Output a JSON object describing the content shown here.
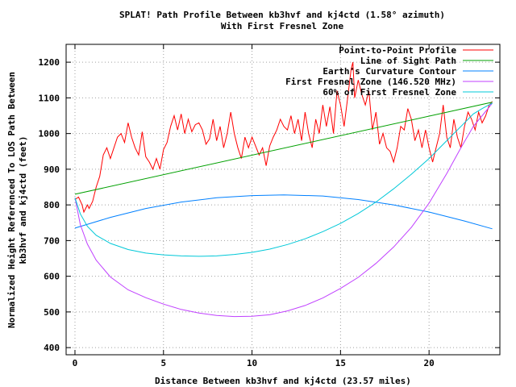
{
  "chart_data": {
    "type": "line",
    "title": "SPLAT! Path Profile Between kb3hvf and kj4ctd (1.58° azimuth)",
    "subtitle": "With First Fresnel Zone",
    "xlabel": "Distance Between kb3hvf and kj4ctd (23.57 miles)",
    "ylabel_line1": "Normalized Height Referenced To LOS Path Between",
    "ylabel_line2": "kb3hvf and kj4ctd (feet)",
    "xlim": [
      -0.5,
      24
    ],
    "ylim": [
      380,
      1250
    ],
    "x_ticks": [
      0,
      5,
      10,
      15,
      20
    ],
    "y_ticks": [
      400,
      500,
      600,
      700,
      800,
      900,
      1000,
      1100,
      1200
    ],
    "grid": true,
    "legend_position": "top-right",
    "series": [
      {
        "name": "Point-to-Point Profile",
        "color": "#ff0000",
        "x": [
          0,
          0.2,
          0.4,
          0.5,
          0.7,
          0.8,
          1.0,
          1.2,
          1.4,
          1.6,
          1.8,
          2.0,
          2.2,
          2.4,
          2.6,
          2.8,
          3.0,
          3.2,
          3.4,
          3.6,
          3.8,
          4.0,
          4.2,
          4.4,
          4.6,
          4.8,
          5.0,
          5.2,
          5.4,
          5.6,
          5.8,
          6.0,
          6.2,
          6.4,
          6.6,
          6.8,
          7.0,
          7.2,
          7.4,
          7.6,
          7.8,
          8.0,
          8.2,
          8.4,
          8.6,
          8.8,
          9.0,
          9.2,
          9.4,
          9.6,
          9.8,
          10.0,
          10.2,
          10.4,
          10.6,
          10.8,
          11.0,
          11.2,
          11.4,
          11.6,
          11.8,
          12.0,
          12.2,
          12.4,
          12.6,
          12.8,
          13.0,
          13.2,
          13.4,
          13.6,
          13.8,
          14.0,
          14.2,
          14.4,
          14.6,
          14.8,
          15.0,
          15.2,
          15.4,
          15.6,
          15.7,
          15.8,
          16.0,
          16.2,
          16.4,
          16.6,
          16.8,
          17.0,
          17.2,
          17.4,
          17.6,
          17.8,
          18.0,
          18.2,
          18.4,
          18.6,
          18.8,
          19.0,
          19.2,
          19.4,
          19.6,
          19.8,
          20.0,
          20.2,
          20.4,
          20.6,
          20.8,
          21.0,
          21.2,
          21.4,
          21.6,
          21.8,
          22.0,
          22.2,
          22.4,
          22.6,
          22.8,
          23.0,
          23.2,
          23.4,
          23.57
        ],
        "y": [
          815,
          822,
          800,
          780,
          800,
          790,
          810,
          850,
          880,
          940,
          960,
          930,
          960,
          990,
          1000,
          975,
          1030,
          990,
          960,
          940,
          1005,
          935,
          920,
          900,
          930,
          900,
          955,
          975,
          1020,
          1050,
          1010,
          1055,
          1000,
          1040,
          1005,
          1025,
          1030,
          1010,
          970,
          985,
          1040,
          980,
          1020,
          960,
          1000,
          1060,
          1000,
          960,
          930,
          990,
          960,
          990,
          965,
          940,
          960,
          910,
          965,
          990,
          1010,
          1040,
          1020,
          1010,
          1050,
          1000,
          1040,
          980,
          1060,
          1000,
          960,
          1040,
          1000,
          1080,
          1020,
          1075,
          1000,
          1120,
          1080,
          1020,
          1100,
          1180,
          1200,
          1100,
          1150,
          1110,
          1080,
          1120,
          1010,
          1060,
          970,
          1000,
          960,
          950,
          920,
          960,
          1020,
          1010,
          1070,
          1040,
          980,
          1010,
          960,
          1010,
          960,
          920,
          960,
          1000,
          1080,
          990,
          960,
          1040,
          990,
          960,
          1020,
          1060,
          1040,
          1010,
          1060,
          1030,
          1050,
          1080,
          1090
        ]
      },
      {
        "name": "Line of Sight Path",
        "color": "#00a000",
        "x": [
          0,
          23.57
        ],
        "y": [
          830,
          1088
        ]
      },
      {
        "name": "Earth's Curvature Contour",
        "color": "#0080ff",
        "x": [
          0,
          2,
          4,
          6,
          8,
          10,
          11.8,
          14,
          16,
          18,
          20,
          22,
          23.57
        ],
        "y": [
          735,
          765,
          790,
          808,
          820,
          826,
          828,
          825,
          815,
          800,
          780,
          755,
          733
        ]
      },
      {
        "name": "First Fresnel Zone (146.520 MHz)",
        "color": "#c040ff",
        "x": [
          0,
          0.3,
          0.7,
          1.2,
          2,
          3,
          4,
          5,
          6,
          7,
          8,
          9,
          10,
          11,
          12,
          13,
          14,
          15,
          16,
          17,
          18,
          19,
          20,
          21,
          21.8,
          22.5,
          23.0,
          23.3,
          23.57
        ],
        "y": [
          820,
          745,
          690,
          645,
          598,
          562,
          540,
          522,
          507,
          497,
          490,
          487,
          488,
          492,
          503,
          518,
          539,
          566,
          597,
          636,
          682,
          737,
          805,
          888,
          960,
          1020,
          1050,
          1068,
          1085
        ]
      },
      {
        "name": "60% of First Fresnel Zone",
        "color": "#00c8d8",
        "x": [
          0,
          0.3,
          0.7,
          1.2,
          2,
          3,
          4,
          5,
          6,
          7,
          8,
          9,
          10,
          11,
          12,
          13,
          14,
          15,
          16,
          17,
          18,
          19,
          20,
          21,
          21.8,
          22.5,
          23.0,
          23.3,
          23.57
        ],
        "y": [
          820,
          775,
          740,
          715,
          692,
          675,
          665,
          660,
          657,
          656,
          657,
          661,
          667,
          676,
          689,
          705,
          725,
          748,
          776,
          808,
          845,
          886,
          930,
          980,
          1020,
          1055,
          1070,
          1078,
          1085
        ]
      }
    ]
  }
}
